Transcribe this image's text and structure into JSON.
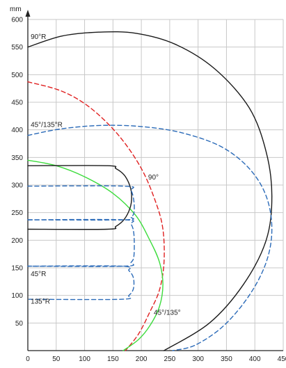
{
  "chart_data": {
    "type": "line",
    "unit_label": "mm",
    "xlim": [
      0,
      450
    ],
    "ylim": [
      0,
      600
    ],
    "x_ticks": [
      0,
      50,
      100,
      150,
      200,
      250,
      300,
      350,
      400,
      450
    ],
    "y_ticks": [
      50,
      100,
      150,
      200,
      250,
      300,
      350,
      400,
      450,
      500,
      550,
      600
    ],
    "grid": true,
    "colors": {
      "black": "#1a1a1a",
      "red": "#e02020",
      "blue": "#2a6ab8",
      "green": "#3ddc3d",
      "grid": "#c8c8c8"
    },
    "series": [
      {
        "name": "90°R",
        "color": "black",
        "style": "solid",
        "x": [
          0,
          60,
          125,
          190,
          260,
          330,
          390,
          420,
          430,
          420,
          380,
          320,
          240
        ],
        "y": [
          550,
          570,
          577,
          575,
          555,
          510,
          440,
          360,
          280,
          200,
          120,
          50,
          0
        ]
      },
      {
        "name": "90°",
        "color": "red",
        "style": "dashed",
        "x": [
          0,
          60,
          110,
          160,
          200,
          225,
          238,
          240,
          232,
          215,
          195,
          172
        ],
        "y": [
          487,
          470,
          440,
          390,
          330,
          270,
          220,
          160,
          110,
          70,
          30,
          0
        ]
      },
      {
        "name": "45°/135°R",
        "color": "blue",
        "style": "dashed",
        "x": [
          0,
          60,
          130,
          200,
          270,
          340,
          390,
          420,
          430,
          420,
          390,
          345,
          295,
          255
        ],
        "y": [
          390,
          402,
          408,
          406,
          395,
          370,
          330,
          280,
          220,
          160,
          100,
          45,
          10,
          0
        ]
      },
      {
        "name": "45°/135°",
        "color": "green",
        "style": "solid",
        "x": [
          0,
          50,
          100,
          150,
          190,
          215,
          232,
          238,
          232,
          215,
          195,
          168
        ],
        "y": [
          345,
          335,
          315,
          285,
          245,
          200,
          160,
          120,
          80,
          45,
          20,
          0
        ]
      },
      {
        "name": "outline-black",
        "color": "black",
        "style": "solid",
        "x": [
          0,
          140,
          155,
          170,
          180,
          183,
          180,
          170,
          155,
          140,
          0
        ],
        "y": [
          335,
          335,
          330,
          318,
          298,
          278,
          258,
          238,
          225,
          220,
          220
        ]
      },
      {
        "name": "outline-blue-upper",
        "color": "blue",
        "style": "dashed",
        "x": [
          0,
          170,
          182,
          187,
          187,
          182,
          170,
          0
        ],
        "y": [
          298,
          298,
          290,
          270,
          250,
          242,
          237,
          237
        ]
      },
      {
        "name": "45°R",
        "color": "blue",
        "style": "dashed",
        "x": [
          0,
          170,
          182,
          187,
          187,
          182,
          170,
          0
        ],
        "y": [
          237,
          237,
          229,
          210,
          172,
          160,
          153,
          153
        ]
      },
      {
        "name": "135°R",
        "color": "blue",
        "style": "dashed",
        "x": [
          0,
          165,
          178,
          186,
          186,
          178,
          165,
          0
        ],
        "y": [
          153,
          153,
          145,
          132,
          112,
          100,
          93,
          93
        ]
      }
    ],
    "annotations": [
      {
        "text": "90°R",
        "x": 5,
        "y": 565
      },
      {
        "text": "45°/135°R",
        "x": 5,
        "y": 405
      },
      {
        "text": "90°",
        "x": 212,
        "y": 310
      },
      {
        "text": "45°R",
        "x": 5,
        "y": 135
      },
      {
        "text": "135°R",
        "x": 5,
        "y": 85
      },
      {
        "text": "45°/135°",
        "x": 222,
        "y": 65
      }
    ]
  }
}
